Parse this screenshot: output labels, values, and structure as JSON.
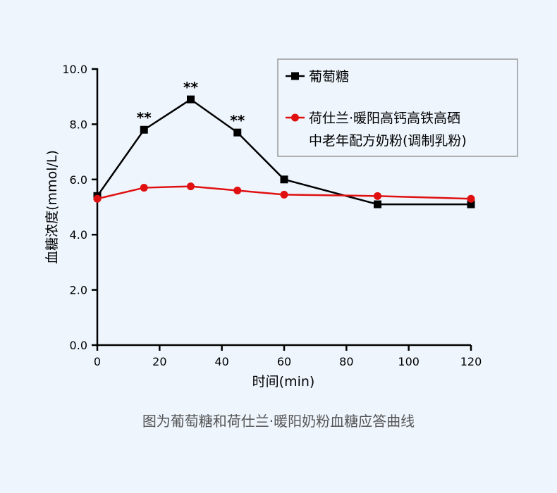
{
  "chart_data": {
    "type": "line",
    "xlabel": "时间(min)",
    "ylabel": "血糖浓度(mmol/L)",
    "xlim": [
      0,
      120
    ],
    "ylim": [
      0,
      10
    ],
    "xticks": [
      0,
      20,
      40,
      60,
      80,
      100,
      120
    ],
    "x_tick_labels": [
      "0",
      "20",
      "40",
      "60",
      "80",
      "100",
      "120"
    ],
    "yticks": [
      0,
      2,
      4,
      6,
      8,
      10
    ],
    "y_tick_labels": [
      "0.0",
      "2.0",
      "4.0",
      "6.0",
      "8.0",
      "10.0"
    ],
    "grid": false,
    "legend_position": "top-right",
    "series": [
      {
        "name": "葡萄糖",
        "color": "#000000",
        "marker": "square",
        "x": [
          0,
          15,
          30,
          45,
          60,
          90,
          120
        ],
        "y": [
          5.4,
          7.8,
          8.9,
          7.7,
          6.0,
          5.1,
          5.1
        ]
      },
      {
        "name": "荷仕兰·暖阳高钙高铁高硒中老年配方奶粉(调制乳粉)",
        "legend_lines": [
          "荷仕兰·暖阳高钙高铁高硒",
          "中老年配方奶粉(调制乳粉)"
        ],
        "color": "#e01010",
        "marker": "circle",
        "x": [
          0,
          15,
          30,
          45,
          60,
          90,
          120
        ],
        "y": [
          5.3,
          5.7,
          5.75,
          5.6,
          5.45,
          5.4,
          5.3
        ]
      }
    ],
    "annotations": [
      {
        "text": "**",
        "x": 15,
        "y": 7.8
      },
      {
        "text": "**",
        "x": 30,
        "y": 8.9
      },
      {
        "text": "**",
        "x": 45,
        "y": 7.7
      }
    ]
  },
  "caption": "图为葡萄糖和荷仕兰·暖阳奶粉血糖应答曲线"
}
